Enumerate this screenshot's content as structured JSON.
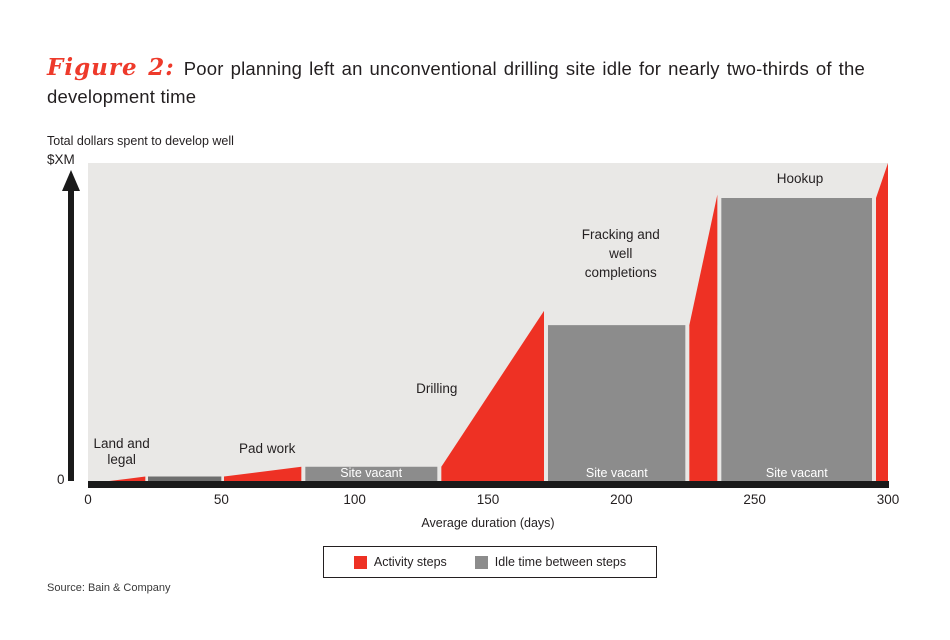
{
  "page": {
    "title_prefix": "Figure 2:",
    "title_rest": "Poor planning left an unconventional drilling site idle for nearly two-thirds of the development time",
    "source": "Source: Bain & Company"
  },
  "chart_data": {
    "type": "area",
    "title": "Poor planning left an unconventional drilling site idle for nearly two-thirds of the development time",
    "ylabel": "Total dollars spent to develop well",
    "y_top_label": "$XM",
    "y_zero_label": "0",
    "xlabel": "Average duration (days)",
    "x_range": [
      0,
      300
    ],
    "x_ticks": [
      0,
      50,
      100,
      150,
      200,
      250,
      300
    ],
    "y_range_pct_of_total_spend": [
      0,
      100
    ],
    "grid": "off",
    "legend_position": "bottom-center",
    "colors": {
      "activity": "#ee3124",
      "idle": "#8c8c8c",
      "idle_thin": "#6e6e6e",
      "plot_bg": "#e9e8e6",
      "axis": "#1a1a1a",
      "figure_accent": "#ee3a2b"
    },
    "legend": [
      {
        "label": "Activity steps",
        "color": "#ee3124"
      },
      {
        "label": "Idle time between steps",
        "color": "#8c8c8c"
      }
    ],
    "segments": [
      {
        "type": "activity",
        "label": "Land and legal",
        "d0": 8,
        "d1": 21.5,
        "v0": 0,
        "v1": 1.4
      },
      {
        "type": "idle",
        "label": "",
        "d0": 22.5,
        "d1": 50,
        "v0": 1.4,
        "v1": 1.4,
        "color": "#6e6e6e"
      },
      {
        "type": "activity",
        "label": "Pad work",
        "d0": 51,
        "d1": 80,
        "v0": 1.4,
        "v1": 4.5
      },
      {
        "type": "idle",
        "label": "Site vacant",
        "d0": 81.5,
        "d1": 131,
        "v0": 4.5,
        "v1": 4.5
      },
      {
        "type": "activity",
        "label": "Drilling",
        "d0": 132.5,
        "d1": 171,
        "v0": 4.5,
        "v1": 53.5
      },
      {
        "type": "idle",
        "label": "Site vacant",
        "d0": 172.5,
        "d1": 224,
        "v0": 49,
        "v1": 49
      },
      {
        "type": "activity",
        "label": "Fracking and well completions",
        "d0": 225.5,
        "d1": 236,
        "v0": 49,
        "v1": 90
      },
      {
        "type": "idle",
        "label": "Site vacant",
        "d0": 237.5,
        "d1": 294,
        "v0": 89,
        "v1": 89
      },
      {
        "type": "activity",
        "label": "Hookup",
        "d0": 295.5,
        "d1": 300,
        "v0": 89,
        "v1": 100
      }
    ]
  }
}
